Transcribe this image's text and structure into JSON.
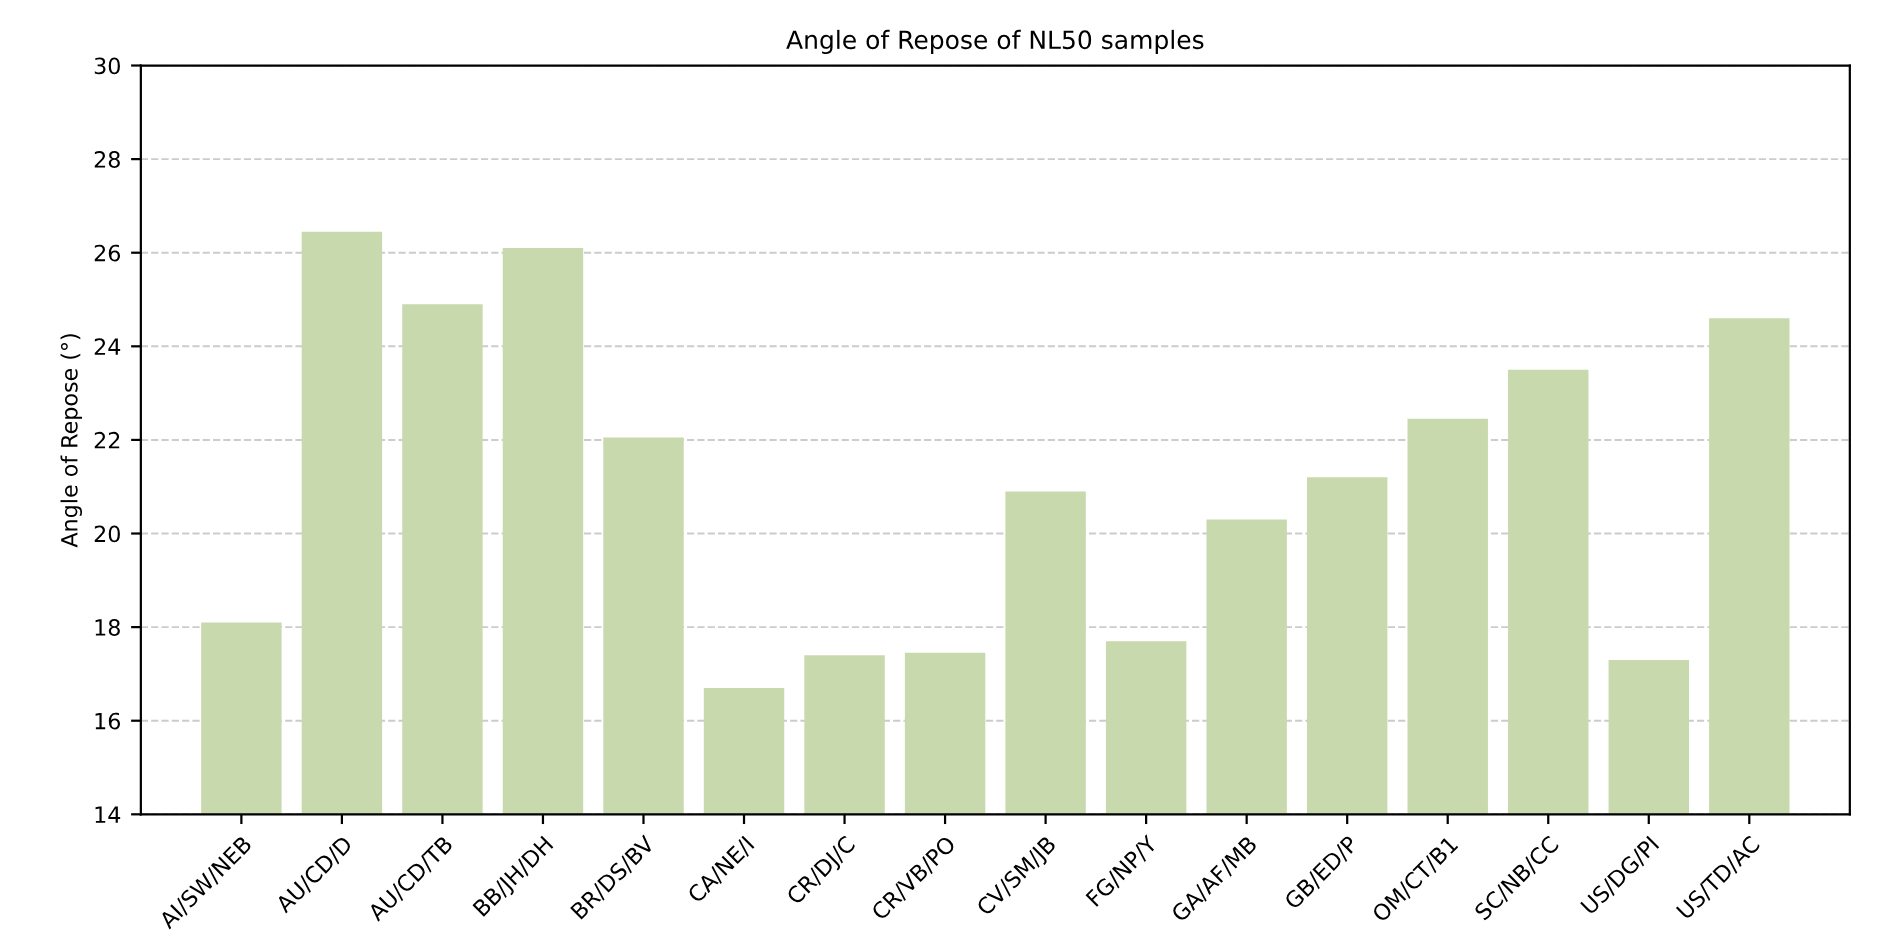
{
  "chart_data": {
    "type": "bar",
    "title": "Angle of Repose of NL50 samples",
    "ylabel": "Angle of Repose (°)",
    "categories": [
      "AI/SW/NEB",
      "AU/CD/D",
      "AU/CD/TB",
      "BB/JH/DH",
      "BR/DS/BV",
      "CA/NE/I",
      "CR/DJ/C",
      "CR/VB/PO",
      "CV/SM/JB",
      "FG/NP/Y",
      "GA/AF/MB",
      "GB/ED/P",
      "OM/CT/B1",
      "SC/NB/CC",
      "US/DG/PI",
      "US/TD/AC"
    ],
    "values": [
      18.1,
      26.45,
      24.9,
      26.1,
      22.05,
      16.7,
      17.4,
      17.45,
      20.9,
      17.7,
      20.3,
      21.2,
      22.45,
      23.5,
      17.3,
      24.6
    ],
    "color": "#c8d9ad",
    "ylim": [
      14,
      30
    ],
    "yticks": [
      14,
      16,
      18,
      20,
      22,
      24,
      26,
      28,
      30
    ],
    "grid": "y"
  }
}
